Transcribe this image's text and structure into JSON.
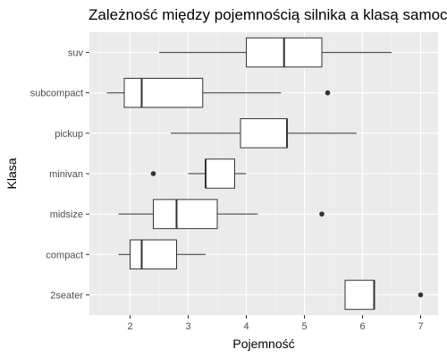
{
  "chart_data": {
    "type": "boxplot",
    "orientation": "horizontal",
    "title": "Zależność między pojemnością silnika a klasą samochodu",
    "xlabel": "Pojemność",
    "ylabel": "Klasa",
    "xlim": [
      1.3,
      7.3
    ],
    "x_ticks": [
      2,
      3,
      4,
      5,
      6,
      7
    ],
    "grid": true,
    "categories": [
      "2seater",
      "compact",
      "midsize",
      "minivan",
      "pickup",
      "subcompact",
      "suv"
    ],
    "boxes": [
      {
        "category": "2seater",
        "whisker_low": 5.7,
        "q1": 5.7,
        "median": 6.2,
        "q3": 6.2,
        "whisker_high": 6.2,
        "outliers": [
          7.0
        ]
      },
      {
        "category": "compact",
        "whisker_low": 1.8,
        "q1": 2.0,
        "median": 2.2,
        "q3": 2.8,
        "whisker_high": 3.3,
        "outliers": []
      },
      {
        "category": "midsize",
        "whisker_low": 1.8,
        "q1": 2.4,
        "median": 2.8,
        "q3": 3.5,
        "whisker_high": 4.2,
        "outliers": [
          5.3
        ]
      },
      {
        "category": "minivan",
        "whisker_low": 3.0,
        "q1": 3.3,
        "median": 3.3,
        "q3": 3.8,
        "whisker_high": 4.0,
        "outliers": [
          2.4
        ]
      },
      {
        "category": "pickup",
        "whisker_low": 2.7,
        "q1": 3.9,
        "median": 4.7,
        "q3": 4.7,
        "whisker_high": 5.9,
        "outliers": []
      },
      {
        "category": "subcompact",
        "whisker_low": 1.6,
        "q1": 1.9,
        "median": 2.2,
        "q3": 3.25,
        "whisker_high": 4.6,
        "outliers": [
          5.4
        ]
      },
      {
        "category": "suv",
        "whisker_low": 2.5,
        "q1": 4.0,
        "median": 4.65,
        "q3": 5.3,
        "whisker_high": 6.5,
        "outliers": []
      }
    ]
  },
  "colors": {
    "panel_background": "#ebebeb",
    "grid_major": "#ffffff",
    "box_fill": "#ffffff",
    "box_stroke": "#333333",
    "outlier": "#333333"
  }
}
